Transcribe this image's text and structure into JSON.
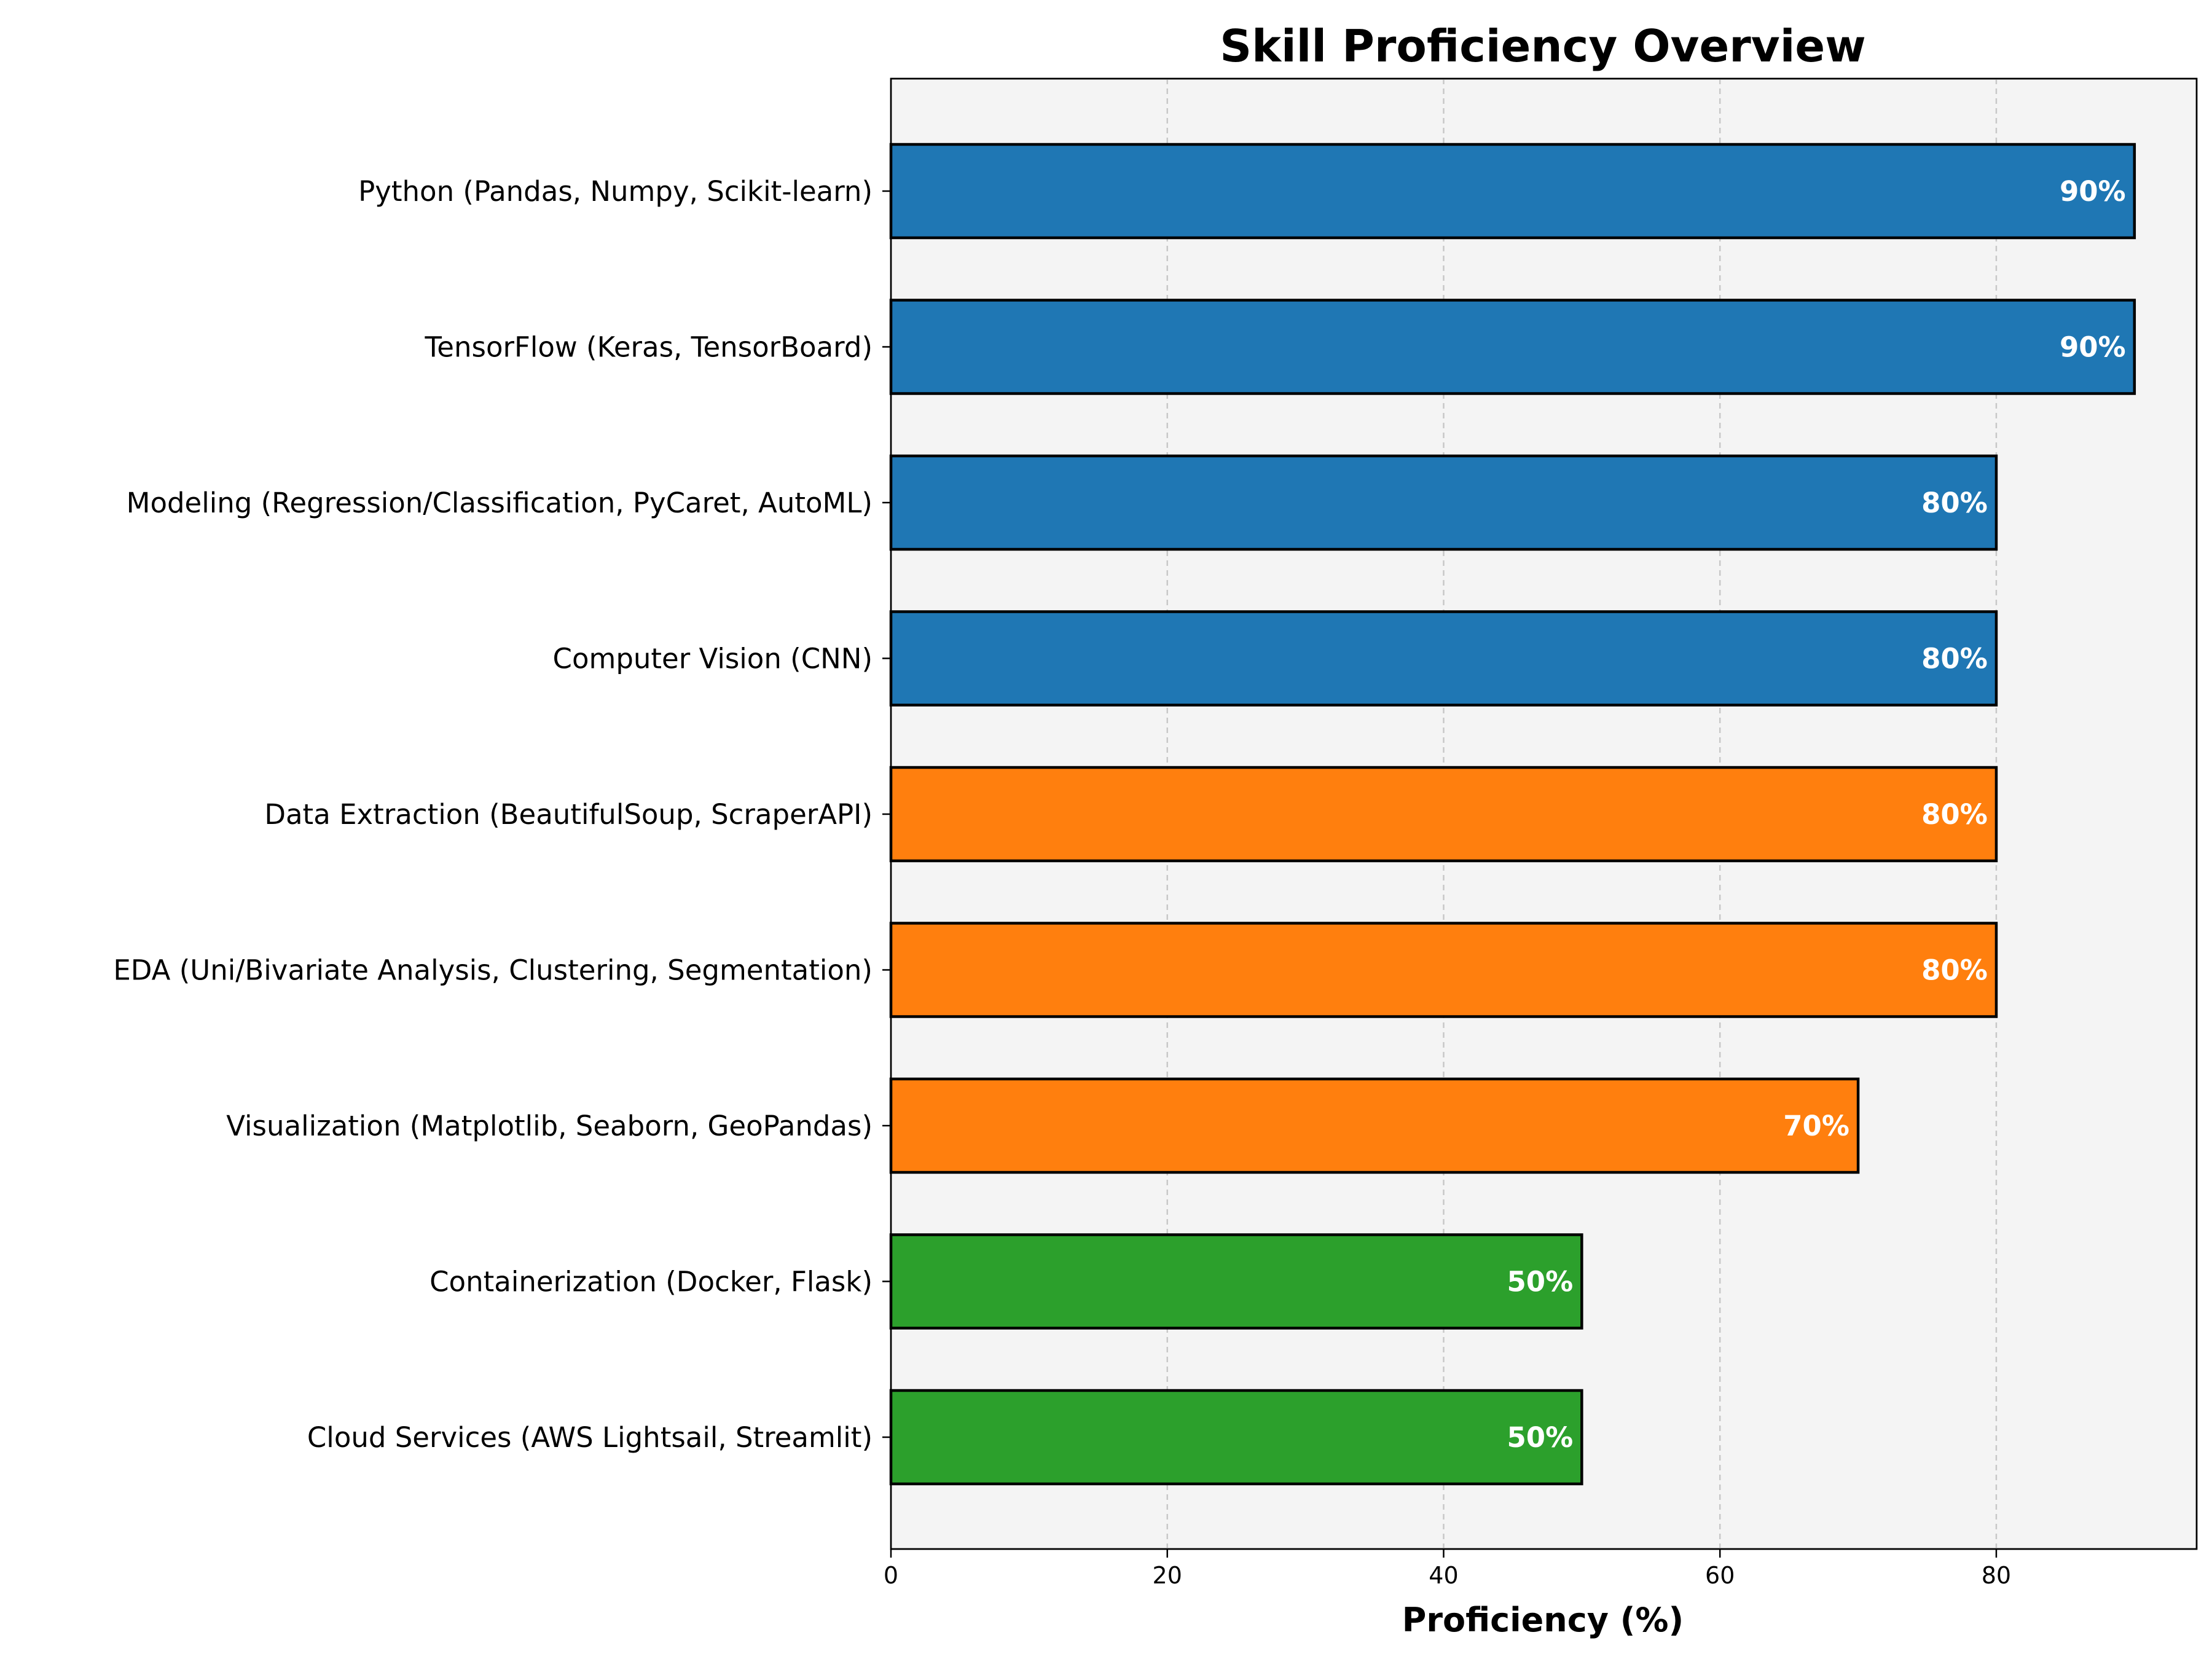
{
  "chart_data": {
    "type": "bar",
    "orientation": "horizontal",
    "title": "Skill Proficiency Overview",
    "xlabel": "Proficiency (%)",
    "ylabel": "",
    "xlim": [
      0,
      94.5
    ],
    "xticks": [
      0,
      20,
      40,
      60,
      80
    ],
    "grid": "x, dashed",
    "value_suffix": "%",
    "categories": [
      "Python (Pandas, Numpy, Scikit-learn)",
      "TensorFlow (Keras, TensorBoard)",
      "Modeling (Regression/Classification, PyCaret, AutoML)",
      "Computer Vision (CNN)",
      "Data Extraction (BeautifulSoup, ScraperAPI)",
      "EDA (Uni/Bivariate Analysis, Clustering, Segmentation)",
      "Visualization (Matplotlib, Seaborn, GeoPandas)",
      "Containerization (Docker, Flask)",
      "Cloud Services (AWS Lightsail, Streamlit)"
    ],
    "values": [
      90,
      90,
      80,
      80,
      80,
      80,
      70,
      50,
      50
    ],
    "bar_colors": [
      "#1f77b4",
      "#1f77b4",
      "#1f77b4",
      "#1f77b4",
      "#ff7f0e",
      "#ff7f0e",
      "#ff7f0e",
      "#2ca02c",
      "#2ca02c"
    ],
    "plot_background": "#f4f4f4",
    "bar_edge_color": "#000000"
  }
}
